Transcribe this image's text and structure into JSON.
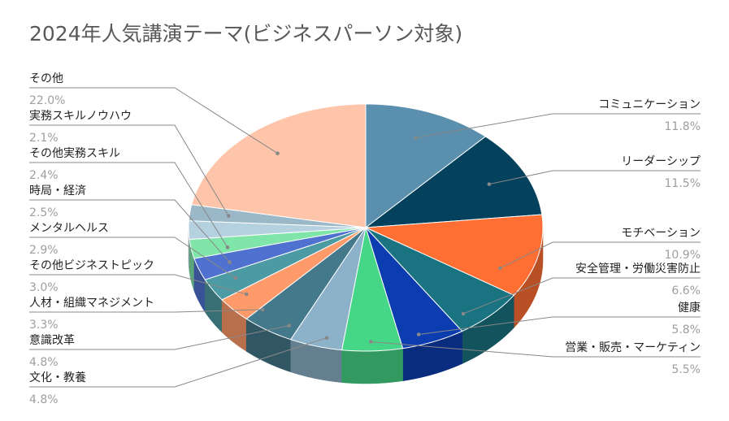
{
  "chart_data": {
    "type": "pie",
    "style": "3d",
    "title": "2024年人気講演テーマ(ビジネスパーソン対象)",
    "slices": [
      {
        "label": "コミュニケーション",
        "value": 11.8,
        "value_label": "11.8%",
        "color": "#5a8fae"
      },
      {
        "label": "リーダーシップ",
        "value": 11.5,
        "value_label": "11.5%",
        "color": "#03415c"
      },
      {
        "label": "モチベーション",
        "value": 10.9,
        "value_label": "10.9%",
        "color": "#ff6e33"
      },
      {
        "label": "安全管理・労働災害防止",
        "value": 6.6,
        "value_label": "6.6%",
        "color": "#1a7381"
      },
      {
        "label": "健康",
        "value": 5.8,
        "value_label": "5.8%",
        "color": "#0c3db0"
      },
      {
        "label": "営業・販売・マーケティン",
        "value": 5.5,
        "value_label": "5.5%",
        "color": "#46d687"
      },
      {
        "label": "文化・教養",
        "value": 4.8,
        "value_label": "4.8%",
        "color": "#8bb2c8"
      },
      {
        "label": "意識改革",
        "value": 4.8,
        "value_label": "4.8%",
        "color": "#44788b"
      },
      {
        "label": "人材・組織マネジメント",
        "value": 3.3,
        "value_label": "3.3%",
        "color": "#ff9a6a"
      },
      {
        "label": "その他ビジネストピック",
        "value": 3.0,
        "value_label": "3.0%",
        "color": "#4c9aa3"
      },
      {
        "label": "メンタルヘルス",
        "value": 2.9,
        "value_label": "2.9%",
        "color": "#4f72d0"
      },
      {
        "label": "時局・経済",
        "value": 2.5,
        "value_label": "2.5%",
        "color": "#7fe5a9"
      },
      {
        "label": "その他実務スキル",
        "value": 2.4,
        "value_label": "2.4%",
        "color": "#b5d1df"
      },
      {
        "label": "実務スキルノウハウ",
        "value": 2.1,
        "value_label": "2.1%",
        "color": "#9ab8c7"
      },
      {
        "label": "その他",
        "value": 22.0,
        "value_label": "22.0%",
        "color": "#ffc5ab"
      }
    ]
  }
}
